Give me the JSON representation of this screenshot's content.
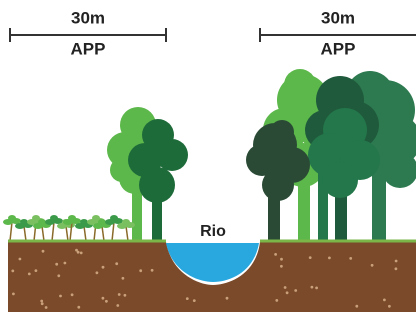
{
  "left_zone": {
    "width_label": "30m",
    "label": "APP"
  },
  "right_zone": {
    "width_label": "30m",
    "label": "APP"
  },
  "river": {
    "label": "Rio"
  }
}
